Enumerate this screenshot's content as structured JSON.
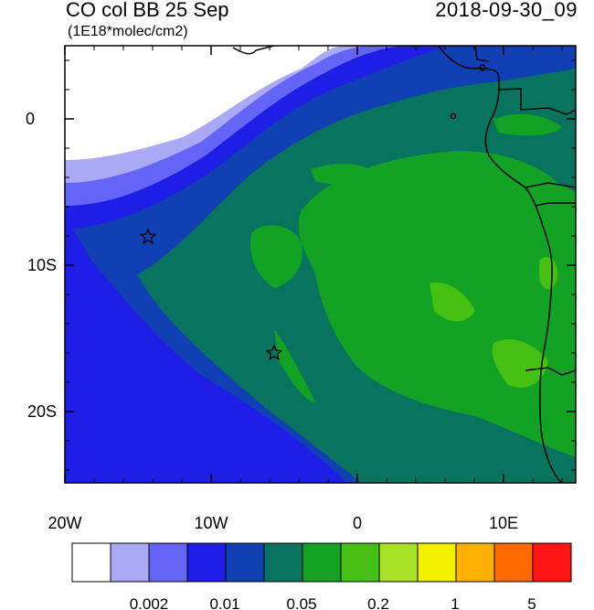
{
  "title": {
    "left": "CO col BB 25 Sep",
    "right": "2018-09-30_09",
    "units": "(1E18*molec/cm2)"
  },
  "axes": {
    "x_ticks": [
      "20W",
      "10W",
      "0",
      "10E"
    ],
    "y_ticks": [
      "0",
      "10S",
      "20S"
    ]
  },
  "colorbar": {
    "colors": [
      "#ffffff",
      "#a9a9f5",
      "#6464f7",
      "#1e1ee6",
      "#1040b4",
      "#08735f",
      "#12a224",
      "#46c012",
      "#a8e024",
      "#f0f000",
      "#ffb000",
      "#ff6a00",
      "#ff1414"
    ],
    "labels": [
      "0.002",
      "0.01",
      "0.05",
      "0.2",
      "1",
      "5"
    ]
  },
  "markers": [
    {
      "name": "star-marker-west",
      "lon": -14.3,
      "lat": -8.0
    },
    {
      "name": "star-marker-central",
      "lon": -5.7,
      "lat": -16.0
    }
  ]
}
